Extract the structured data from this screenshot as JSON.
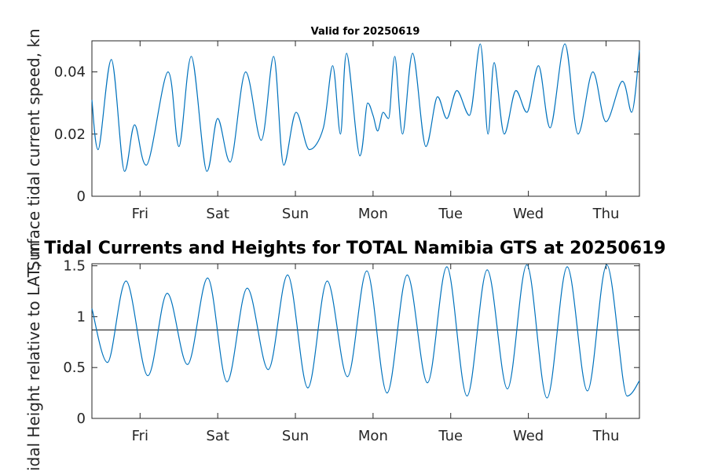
{
  "chart_data": [
    {
      "type": "line",
      "title": "Valid for 20250619",
      "ylabel": "Surface tidal current speed, knots",
      "ylabel_visible": "Surface tidal current speed, kn",
      "x_unit": "days",
      "xlim": [
        0,
        7.05
      ],
      "ylim": [
        0,
        0.05
      ],
      "yticks": [
        0,
        0.02,
        0.04
      ],
      "ytick_labels": [
        "0",
        "0.02",
        "0.04"
      ],
      "xticks": [
        0.62,
        1.62,
        2.62,
        3.62,
        4.62,
        5.62,
        6.62
      ],
      "xtick_labels": [
        "Fri",
        "Sat",
        "Sun",
        "Mon",
        "Tue",
        "Wed",
        "Thu"
      ],
      "line_color": "#0072BD",
      "series": [
        {
          "x": [
            0,
            0.08,
            0.25,
            0.42,
            0.55,
            0.7,
            0.98,
            1.12,
            1.28,
            1.48,
            1.62,
            1.78,
            1.98,
            2.18,
            2.34,
            2.47,
            2.63,
            2.8,
            2.98,
            3.1,
            3.2,
            3.28,
            3.45,
            3.55,
            3.62,
            3.68,
            3.75,
            3.82,
            3.9,
            4.0,
            4.13,
            4.3,
            4.45,
            4.57,
            4.7,
            4.86,
            5.0,
            5.1,
            5.18,
            5.31,
            5.46,
            5.6,
            5.75,
            5.9,
            6.09,
            6.26,
            6.45,
            6.62,
            6.83,
            6.95,
            7.05
          ],
          "y": [
            0.031,
            0.015,
            0.044,
            0.008,
            0.023,
            0.01,
            0.04,
            0.016,
            0.045,
            0.008,
            0.025,
            0.011,
            0.04,
            0.018,
            0.045,
            0.01,
            0.027,
            0.015,
            0.022,
            0.042,
            0.02,
            0.046,
            0.013,
            0.03,
            0.026,
            0.021,
            0.027,
            0.025,
            0.045,
            0.02,
            0.046,
            0.016,
            0.032,
            0.025,
            0.034,
            0.026,
            0.049,
            0.02,
            0.043,
            0.02,
            0.034,
            0.027,
            0.042,
            0.022,
            0.049,
            0.02,
            0.04,
            0.024,
            0.037,
            0.027,
            0.047
          ]
        }
      ]
    },
    {
      "type": "line",
      "title": "Tidal Currents and Heights for TOTAL Namibia GTS at 20250619",
      "ylabel": "Tidal Height relative to LAT, m",
      "ylabel_visible": "idal Height relative to LAT, m",
      "x_unit": "days",
      "xlim": [
        0,
        7.05
      ],
      "ylim": [
        0,
        1.52
      ],
      "yticks": [
        0,
        0.5,
        1,
        1.5
      ],
      "ytick_labels": [
        "0",
        "0.5",
        "1",
        "1.5"
      ],
      "xticks": [
        0.62,
        1.62,
        2.62,
        3.62,
        4.62,
        5.62,
        6.62
      ],
      "xtick_labels": [
        "Fri",
        "Sat",
        "Sun",
        "Mon",
        "Tue",
        "Wed",
        "Thu"
      ],
      "line_color": "#0072BD",
      "mean_level": 0.87,
      "mean_line_color": "#000000",
      "series": [
        {
          "x": [
            0,
            0.2,
            0.44,
            0.72,
            0.97,
            1.23,
            1.49,
            1.74,
            2.0,
            2.27,
            2.52,
            2.78,
            3.03,
            3.29,
            3.54,
            3.8,
            4.06,
            4.32,
            4.57,
            4.83,
            5.09,
            5.35,
            5.6,
            5.86,
            6.12,
            6.38,
            6.63,
            6.89,
            7.05
          ],
          "y": [
            1.08,
            0.55,
            1.35,
            0.42,
            1.23,
            0.53,
            1.38,
            0.36,
            1.28,
            0.48,
            1.41,
            0.3,
            1.35,
            0.41,
            1.45,
            0.25,
            1.41,
            0.35,
            1.49,
            0.22,
            1.46,
            0.29,
            1.51,
            0.2,
            1.49,
            0.27,
            1.51,
            0.22,
            0.37
          ]
        }
      ]
    }
  ]
}
